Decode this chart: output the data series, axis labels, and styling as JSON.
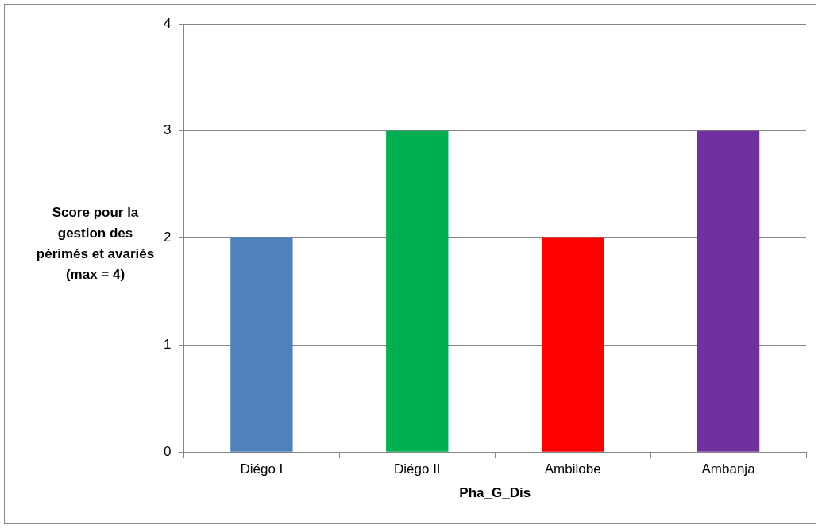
{
  "chart_data": {
    "type": "bar",
    "xlabel": "Pha_G_Dis",
    "ylabel": "Score pour la gestion des périmés et avariés (max = 4)",
    "categories": [
      "Diégo I",
      "Diégo II",
      "Ambilobe",
      "Ambanja"
    ],
    "values": [
      2,
      3,
      2,
      3
    ],
    "colors": [
      "#4f81bd",
      "#00b050",
      "#ff0000",
      "#7030a0"
    ],
    "ylim": [
      0,
      4
    ],
    "yticks": [
      0,
      1,
      2,
      3,
      4
    ],
    "grid": "y",
    "legend": false
  }
}
